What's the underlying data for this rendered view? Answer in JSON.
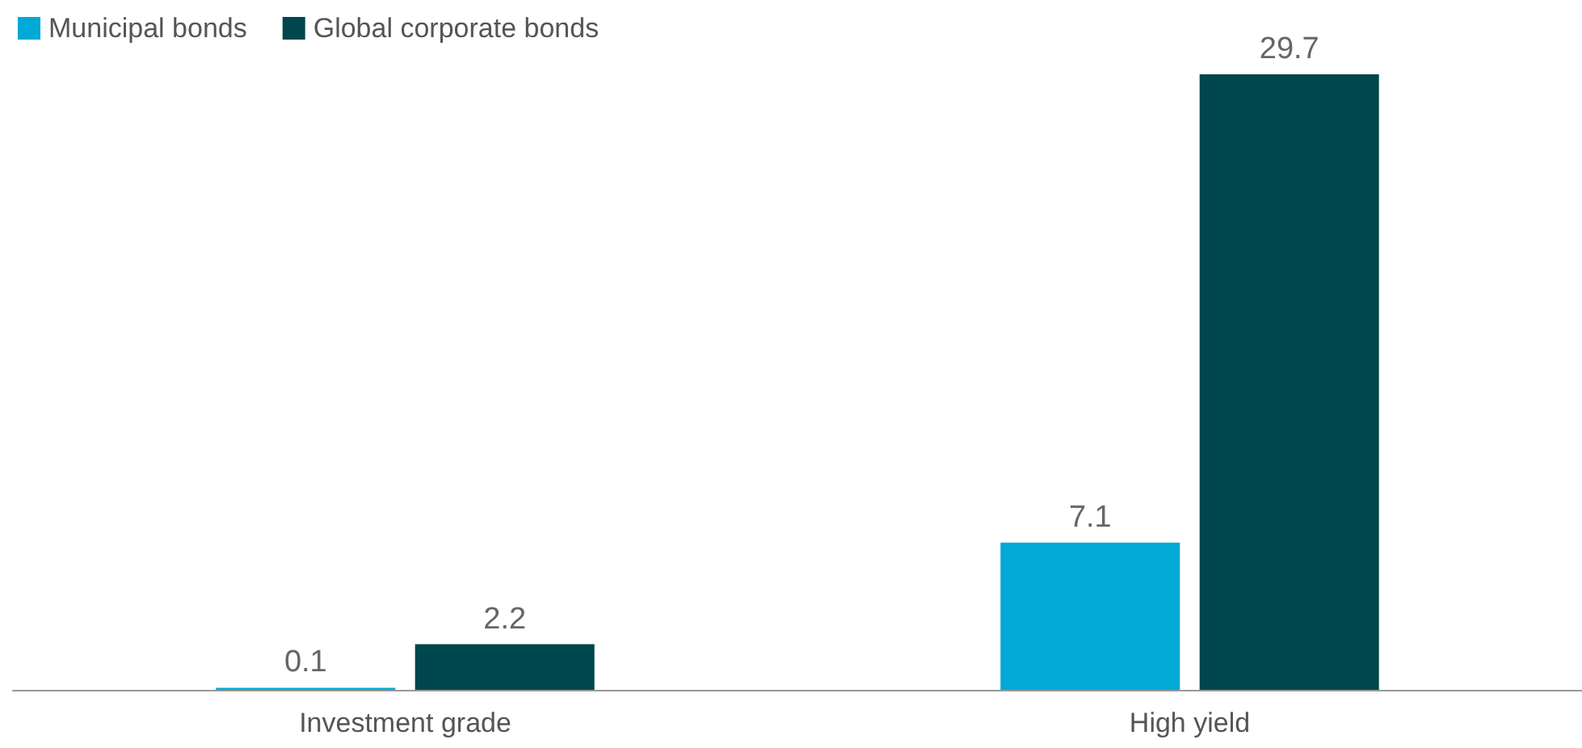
{
  "chart_data": {
    "type": "bar",
    "categories": [
      "Investment grade",
      "High yield"
    ],
    "series": [
      {
        "name": "Municipal bonds",
        "color": "#00a9d6",
        "values": [
          0.1,
          7.1
        ]
      },
      {
        "name": "Global corporate bonds",
        "color": "#00464d",
        "values": [
          2.2,
          29.7
        ]
      }
    ],
    "data_labels": true,
    "legend": "top left",
    "grid": false
  }
}
